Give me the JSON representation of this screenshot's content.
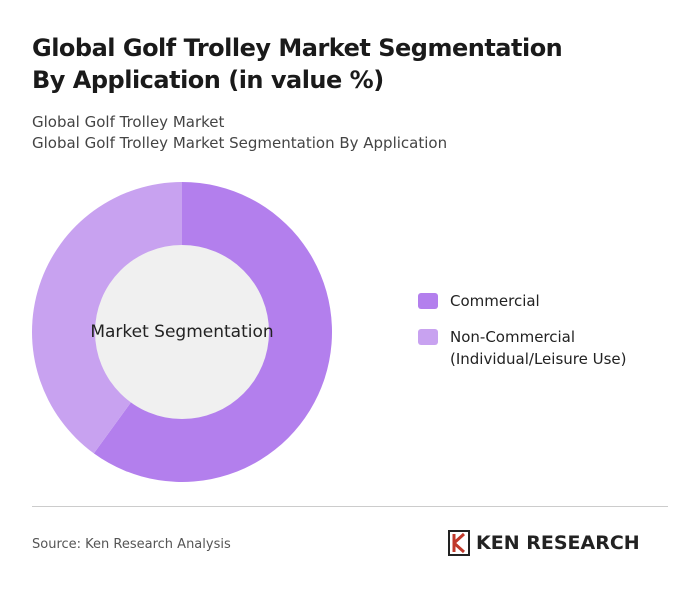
{
  "chart_data": {
    "type": "donut",
    "title": "Global Golf Trolley Market Segmentation By Application (in value %)",
    "subtitle": [
      "Global Golf Trolley Market",
      "Global Golf Trolley Market Segmentation By Application"
    ],
    "center_label": "Market Segmentation",
    "categories": [
      "Commercial",
      "Non-Commercial (Individual/Leisure Use)"
    ],
    "values": [
      60,
      40
    ],
    "colors": [
      "#b37fed",
      "#c8a2f0"
    ]
  },
  "footer": {
    "source": "Source: Ken Research Analysis",
    "logo": "KEN RESEARCH"
  }
}
